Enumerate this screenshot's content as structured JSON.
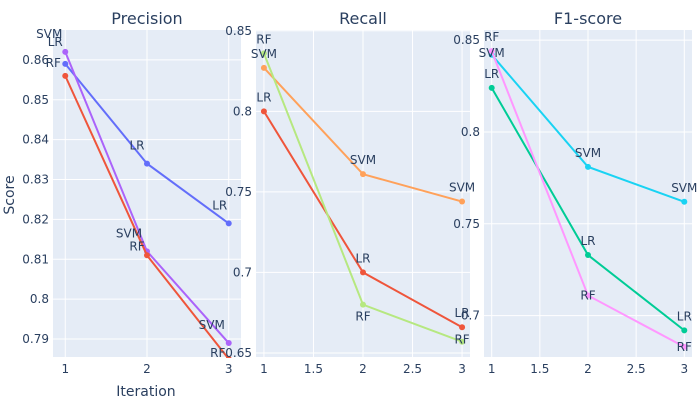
{
  "figure": {
    "ylabel": "Score",
    "xlabel": "Iteration"
  },
  "chart_data": [
    {
      "type": "line",
      "title": "Precision",
      "xlim": [
        0.85,
        3.15
      ],
      "ylim": [
        0.7855,
        0.8675
      ],
      "xticks": [
        1,
        2,
        3
      ],
      "xtick_labels": [
        "1",
        "2",
        "3"
      ],
      "yticks": [
        0.79,
        0.8,
        0.81,
        0.82,
        0.83,
        0.84,
        0.85,
        0.86
      ],
      "ytick_labels": [
        "0.79",
        "0.8",
        "0.81",
        "0.82",
        "0.83",
        "0.84",
        "0.85",
        "0.86"
      ],
      "grid": true,
      "series": [
        {
          "name": "LR",
          "color": "#636efa",
          "x": [
            1,
            2,
            3
          ],
          "y": [
            0.859,
            0.834,
            0.819
          ]
        },
        {
          "name": "SVM",
          "color": "#ab63fa",
          "x": [
            1,
            2,
            3
          ],
          "y": [
            0.862,
            0.812,
            0.789
          ]
        },
        {
          "name": "RF",
          "color": "#ef553b",
          "x": [
            1,
            2,
            3
          ],
          "y": [
            0.856,
            0.811,
            0.785
          ]
        }
      ]
    },
    {
      "type": "line",
      "title": "Recall",
      "xlim": [
        0.92,
        3.08
      ],
      "ylim": [
        0.6475,
        0.8505
      ],
      "xticks": [
        1,
        1.5,
        2,
        2.5,
        3
      ],
      "xtick_labels": [
        "1",
        "1.5",
        "2",
        "2.5",
        "3"
      ],
      "yticks": [
        0.65,
        0.7,
        0.75,
        0.8,
        0.85
      ],
      "ytick_labels": [
        "0.65",
        "0.7",
        "0.75",
        "0.8",
        "0.85"
      ],
      "grid": true,
      "series": [
        {
          "name": "LR",
          "color": "#ef553b",
          "x": [
            1,
            2,
            3
          ],
          "y": [
            0.8,
            0.7,
            0.666
          ]
        },
        {
          "name": "SVM",
          "color": "#ffa15a",
          "x": [
            1,
            2,
            3
          ],
          "y": [
            0.827,
            0.761,
            0.744
          ]
        },
        {
          "name": "RF",
          "color": "#b6e880",
          "x": [
            1,
            2,
            3
          ],
          "y": [
            0.836,
            0.68,
            0.657
          ]
        }
      ]
    },
    {
      "type": "line",
      "title": "F1-score",
      "xlim": [
        0.92,
        3.08
      ],
      "ylim": [
        0.6775,
        0.8555
      ],
      "xticks": [
        1,
        1.5,
        2,
        2.5,
        3
      ],
      "xtick_labels": [
        "1",
        "1.5",
        "2",
        "2.5",
        "3"
      ],
      "yticks": [
        0.7,
        0.75,
        0.8,
        0.85
      ],
      "ytick_labels": [
        "0.7",
        "0.75",
        "0.8",
        "0.85"
      ],
      "grid": true,
      "series": [
        {
          "name": "LR",
          "color": "#00cc96",
          "x": [
            1,
            2,
            3
          ],
          "y": [
            0.824,
            0.733,
            0.692
          ]
        },
        {
          "name": "SVM",
          "color": "#19d3f3",
          "x": [
            1,
            2,
            3
          ],
          "y": [
            0.842,
            0.781,
            0.762
          ]
        },
        {
          "name": "RF",
          "color": "#ff97ff",
          "x": [
            1,
            2,
            3
          ],
          "y": [
            0.844,
            0.711,
            0.683
          ]
        }
      ]
    }
  ]
}
